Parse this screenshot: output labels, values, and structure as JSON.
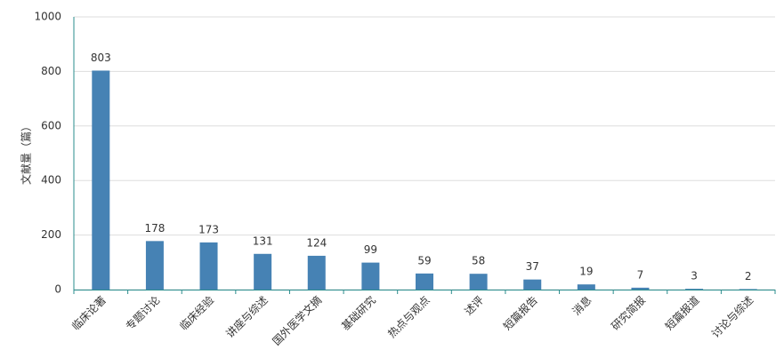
{
  "chart_data": {
    "type": "bar",
    "y_label": "文献量（篇）",
    "categories": [
      "临床论著",
      "专题讨论",
      "临床经验",
      "讲座与综述",
      "国外医学文摘",
      "基础研究",
      "热点与观点",
      "述评",
      "短篇报告",
      "消息",
      "研究简报",
      "短篇报道",
      "讨论与综述"
    ],
    "values": [
      803,
      178,
      173,
      131,
      124,
      99,
      59,
      58,
      37,
      19,
      7,
      3,
      2
    ],
    "color": "#4682b4",
    "ylim": [
      0,
      1000
    ],
    "yticks": [
      0,
      200,
      400,
      600,
      800,
      1000
    ],
    "grid": true
  }
}
